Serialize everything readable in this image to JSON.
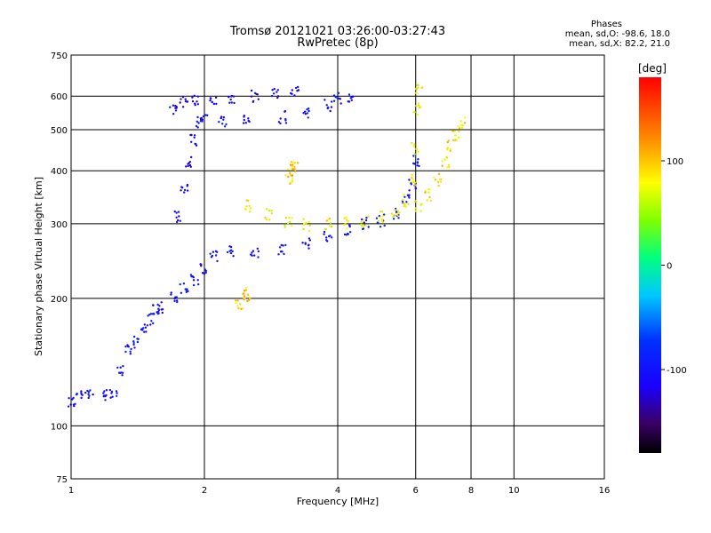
{
  "header": {
    "title_line1": "Tromsø 20121021 03:26:00-03:27:43",
    "title_line2": "RwPretec (8p)"
  },
  "stats": {
    "heading": "Phases",
    "line_o": "mean, sd,O: -98.6, 18.0",
    "line_x": "mean, sd,X:  82.2, 21.0"
  },
  "colorbar": {
    "title": "[deg]",
    "ticks": [
      "100",
      "0",
      "-100"
    ],
    "tick_values": [
      100,
      0,
      -100
    ],
    "range": [
      -180,
      180
    ]
  },
  "chart_data": {
    "type": "scatter",
    "xlabel": "Frequency [MHz]",
    "ylabel": "Stationary phase Virtual Height [km]",
    "x_scale": "log",
    "y_scale": "log",
    "xlim": [
      1,
      16
    ],
    "ylim": [
      75,
      750
    ],
    "x_ticks": [
      "1",
      "2",
      "4",
      "6",
      "8",
      "10",
      "16"
    ],
    "x_tick_values": [
      1,
      2,
      4,
      6,
      8,
      10,
      16
    ],
    "y_ticks": [
      "75",
      "100",
      "200",
      "300",
      "400",
      "500",
      "600",
      "750"
    ],
    "y_tick_values": [
      75,
      100,
      200,
      300,
      400,
      500,
      600,
      750
    ],
    "grid": true,
    "series": [
      {
        "trace": "o-lower",
        "phase_deg": -100,
        "points": [
          [
            1.0,
            114
          ],
          [
            1.04,
            118
          ],
          [
            1.1,
            118
          ],
          [
            1.18,
            119
          ],
          [
            1.25,
            120
          ],
          [
            1.3,
            135
          ],
          [
            1.35,
            150
          ],
          [
            1.4,
            158
          ],
          [
            1.45,
            168
          ],
          [
            1.5,
            178
          ],
          [
            1.55,
            188
          ],
          [
            1.6,
            190
          ],
          [
            1.7,
            200
          ],
          [
            1.8,
            210
          ],
          [
            1.9,
            220
          ],
          [
            2.0,
            235
          ],
          [
            2.1,
            250
          ],
          [
            2.3,
            258
          ],
          [
            2.6,
            258
          ],
          [
            3.0,
            262
          ],
          [
            3.4,
            268
          ],
          [
            3.8,
            280
          ],
          [
            4.2,
            290
          ],
          [
            4.6,
            300
          ],
          [
            5.0,
            305
          ],
          [
            5.4,
            318
          ],
          [
            5.7,
            340
          ],
          [
            5.9,
            370
          ],
          [
            6.0,
            420
          ]
        ]
      },
      {
        "trace": "o-upper",
        "phase_deg": -105,
        "points": [
          [
            1.75,
            310
          ],
          [
            1.8,
            360
          ],
          [
            1.85,
            420
          ],
          [
            1.9,
            470
          ],
          [
            1.95,
            520
          ],
          [
            2.0,
            530
          ],
          [
            2.2,
            525
          ],
          [
            2.5,
            528
          ],
          [
            3.0,
            535
          ],
          [
            3.4,
            550
          ],
          [
            3.8,
            570
          ],
          [
            4.0,
            590
          ],
          [
            4.3,
            600
          ]
        ]
      },
      {
        "trace": "o-cusp",
        "phase_deg": -110,
        "points": [
          [
            1.7,
            560
          ],
          [
            1.8,
            580
          ],
          [
            1.9,
            590
          ],
          [
            2.1,
            590
          ],
          [
            2.3,
            595
          ],
          [
            2.6,
            600
          ],
          [
            2.9,
            605
          ],
          [
            3.2,
            610
          ]
        ]
      },
      {
        "trace": "x-lower",
        "phase_deg": 80,
        "points": [
          [
            2.5,
            330
          ],
          [
            2.8,
            315
          ],
          [
            3.1,
            300
          ],
          [
            3.4,
            298
          ],
          [
            3.8,
            300
          ],
          [
            4.2,
            302
          ],
          [
            4.6,
            305
          ],
          [
            5.0,
            310
          ],
          [
            5.4,
            320
          ],
          [
            5.7,
            340
          ],
          [
            5.9,
            380
          ],
          [
            6.0,
            450
          ],
          [
            6.05,
            560
          ],
          [
            6.1,
            620
          ]
        ]
      },
      {
        "trace": "x-upper",
        "phase_deg": 90,
        "points": [
          [
            6.1,
            330
          ],
          [
            6.4,
            350
          ],
          [
            6.7,
            380
          ],
          [
            7.0,
            420
          ],
          [
            7.2,
            460
          ],
          [
            7.4,
            480
          ],
          [
            7.6,
            520
          ]
        ]
      },
      {
        "trace": "x-patch",
        "phase_deg": 100,
        "points": [
          [
            3.1,
            380
          ],
          [
            3.15,
            400
          ],
          [
            3.2,
            410
          ],
          [
            2.4,
            195
          ],
          [
            2.45,
            205
          ],
          [
            2.5,
            200
          ]
        ]
      }
    ]
  }
}
